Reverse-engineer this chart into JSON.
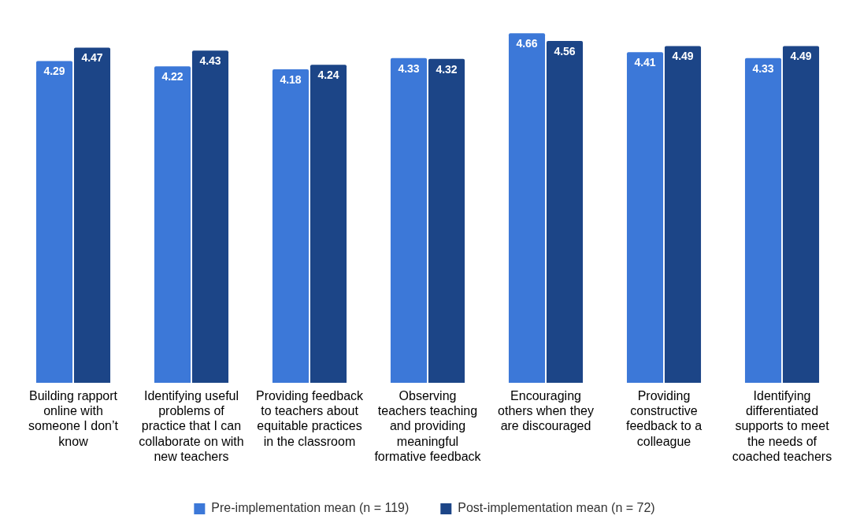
{
  "chart_data": {
    "type": "bar",
    "categories": [
      "Building rapport online with someone I don’t know",
      "Identifying useful problems of practice that I can collaborate on with new teachers",
      "Providing feedback to teachers about equitable practices in the classroom",
      "Observing teachers teaching and providing meaningful formative feedback",
      "Encouraging others when they are discouraged",
      "Providing constructive feedback to a colleague",
      "Identifying differentiated supports to meet the needs of coached teachers"
    ],
    "series": [
      {
        "name": "Pre-implementation mean (n = 119)",
        "color": "#3c78d8",
        "values": [
          4.29,
          4.22,
          4.18,
          4.33,
          4.66,
          4.41,
          4.33
        ]
      },
      {
        "name": "Post-implementation mean (n = 72)",
        "color": "#1c4587",
        "values": [
          4.47,
          4.43,
          4.24,
          4.32,
          4.56,
          4.49,
          4.49
        ]
      }
    ],
    "tick_labels": "x",
    "grid": false,
    "legend": "bottom",
    "data_labels": true
  }
}
